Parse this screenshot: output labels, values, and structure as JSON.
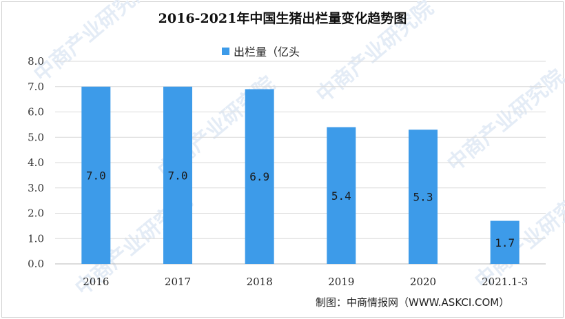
{
  "chart_data": {
    "type": "bar",
    "title": "2016-2021年中国生猪出栏量变化趋势图",
    "categories": [
      "2016",
      "2017",
      "2018",
      "2019",
      "2020",
      "2021.1-3"
    ],
    "series": [
      {
        "name": "出栏量（亿头",
        "values": [
          7.0,
          7.0,
          6.9,
          5.4,
          5.3,
          1.7
        ]
      }
    ],
    "data_labels": [
      "7.0",
      "7.0",
      "6.9",
      "5.4",
      "5.3",
      "1.7"
    ],
    "y_ticks": [
      "0.0",
      "1.0",
      "2.0",
      "3.0",
      "4.0",
      "5.0",
      "6.0",
      "7.0",
      "8.0"
    ],
    "ylim": [
      0,
      8
    ],
    "grid": true,
    "legend_position": "top-center",
    "bar_color": "#3d9be9",
    "xlabel": "",
    "ylabel": ""
  },
  "footer": {
    "credit": "制图：中商情报网（WWW.ASKCI.COM）"
  },
  "watermark": {
    "text": "中商产业研究院",
    "color": "#e4ecf6"
  }
}
